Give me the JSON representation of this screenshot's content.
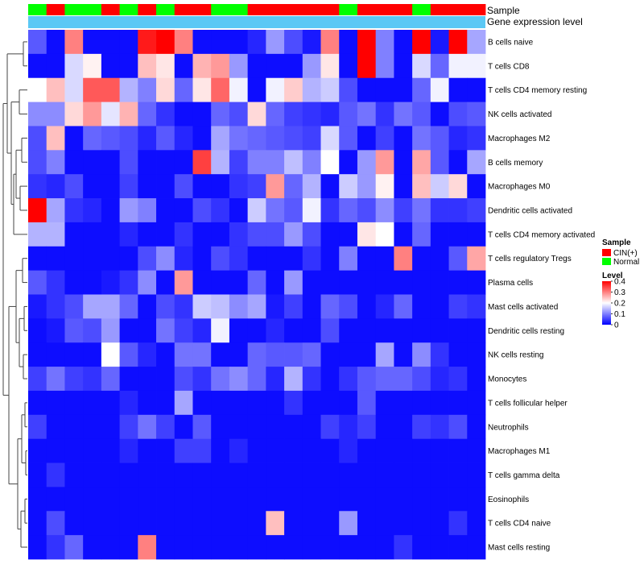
{
  "chart_data": {
    "type": "heatmap",
    "annotation_tracks": [
      {
        "name": "Sample",
        "label": "Sample"
      },
      {
        "name": "Gene expression level",
        "label": "Gene expression level"
      }
    ],
    "sample_groups": [
      "N",
      "C",
      "N",
      "N",
      "C",
      "N",
      "C",
      "N",
      "C",
      "C",
      "N",
      "N",
      "C",
      "C",
      "C",
      "C",
      "C",
      "N",
      "C",
      "C",
      "C",
      "N",
      "C",
      "C",
      "C"
    ],
    "gene_expression_color": "#5BC8F5",
    "rows": [
      "B cells naive",
      "T cells CD8",
      "T cells CD4 memory resting",
      "NK cells activated",
      "Macrophages M2",
      "B cells memory",
      "Macrophages M0",
      "Dendritic cells activated",
      "T cells CD4 memory activated",
      "T cells regulatory  Tregs",
      "Plasma cells",
      "Mast cells activated",
      "Dendritic cells resting",
      "NK cells resting",
      "Monocytes",
      "T cells follicular helper",
      "Neutrophils",
      "Macrophages M1",
      "T cells gamma delta",
      "Eosinophils",
      "T cells CD4 naive",
      "Mast cells resting"
    ],
    "values": [
      [
        0.07,
        0.01,
        0.3,
        0.01,
        0.01,
        0.01,
        0.38,
        0.4,
        0.3,
        0.01,
        0.01,
        0.01,
        0.03,
        0.12,
        0.06,
        0.02,
        0.3,
        0.01,
        0.4,
        0.1,
        0.01,
        0.4,
        0.02,
        0.4,
        0.13
      ],
      [
        0.01,
        0.01,
        0.17,
        0.21,
        0.01,
        0.01,
        0.25,
        0.22,
        0.01,
        0.26,
        0.28,
        0.12,
        0.01,
        0.01,
        0.01,
        0.12,
        0.22,
        0.01,
        0.4,
        0.1,
        0.01,
        0.17,
        0.08,
        0.19,
        0.19
      ],
      [
        0.2,
        0.25,
        0.17,
        0.33,
        0.33,
        0.14,
        0.1,
        0.23,
        0.08,
        0.22,
        0.32,
        0.19,
        0.01,
        0.19,
        0.24,
        0.14,
        0.16,
        0.06,
        0.01,
        0.01,
        0.01,
        0.08,
        0.19,
        0.01,
        0.01
      ],
      [
        0.11,
        0.11,
        0.23,
        0.28,
        0.18,
        0.26,
        0.08,
        0.04,
        0.01,
        0.01,
        0.08,
        0.06,
        0.23,
        0.08,
        0.05,
        0.04,
        0.03,
        0.07,
        0.09,
        0.04,
        0.09,
        0.07,
        0.01,
        0.06,
        0.07
      ],
      [
        0.06,
        0.25,
        0.01,
        0.08,
        0.07,
        0.06,
        0.03,
        0.07,
        0.03,
        0.01,
        0.13,
        0.09,
        0.08,
        0.07,
        0.06,
        0.05,
        0.17,
        0.07,
        0.01,
        0.05,
        0.01,
        0.09,
        0.07,
        0.03,
        0.04
      ],
      [
        0.06,
        0.1,
        0.01,
        0.01,
        0.01,
        0.06,
        0.01,
        0.01,
        0.01,
        0.35,
        0.14,
        0.05,
        0.1,
        0.1,
        0.15,
        0.1,
        0.2,
        0.01,
        0.12,
        0.28,
        0.01,
        0.27,
        0.07,
        0.01,
        0.13
      ],
      [
        0.04,
        0.03,
        0.06,
        0.01,
        0.01,
        0.05,
        0.01,
        0.01,
        0.06,
        0.01,
        0.01,
        0.04,
        0.05,
        0.28,
        0.08,
        0.14,
        0.01,
        0.16,
        0.12,
        0.21,
        0.01,
        0.25,
        0.16,
        0.23,
        0.01
      ],
      [
        0.4,
        0.13,
        0.04,
        0.03,
        0.01,
        0.12,
        0.1,
        0.01,
        0.01,
        0.06,
        0.04,
        0.01,
        0.16,
        0.09,
        0.07,
        0.19,
        0.04,
        0.08,
        0.06,
        0.11,
        0.05,
        0.09,
        0.04,
        0.04,
        0.05
      ],
      [
        0.14,
        0.14,
        0.01,
        0.01,
        0.01,
        0.03,
        0.01,
        0.01,
        0.04,
        0.01,
        0.01,
        0.04,
        0.06,
        0.06,
        0.12,
        0.06,
        0.01,
        0.01,
        0.22,
        0.2,
        0.01,
        0.08,
        0.01,
        0.01,
        0.01
      ],
      [
        0.01,
        0.01,
        0.01,
        0.01,
        0.01,
        0.01,
        0.06,
        0.11,
        0.03,
        0.01,
        0.06,
        0.04,
        0.01,
        0.01,
        0.01,
        0.04,
        0.01,
        0.1,
        0.01,
        0.01,
        0.3,
        0.01,
        0.01,
        0.07,
        0.27
      ],
      [
        0.07,
        0.04,
        0.01,
        0.01,
        0.02,
        0.04,
        0.11,
        0.01,
        0.28,
        0.01,
        0.01,
        0.01,
        0.08,
        0.01,
        0.12,
        0.01,
        0.01,
        0.01,
        0.01,
        0.01,
        0.01,
        0.01,
        0.01,
        0.01,
        0.01
      ],
      [
        0.02,
        0.04,
        0.06,
        0.13,
        0.13,
        0.08,
        0.01,
        0.06,
        0.04,
        0.16,
        0.15,
        0.11,
        0.13,
        0.02,
        0.05,
        0.01,
        0.08,
        0.06,
        0.01,
        0.03,
        0.08,
        0.01,
        0.01,
        0.05,
        0.04
      ],
      [
        0.01,
        0.02,
        0.07,
        0.06,
        0.12,
        0.01,
        0.01,
        0.09,
        0.05,
        0.03,
        0.19,
        0.01,
        0.01,
        0.03,
        0.01,
        0.01,
        0.06,
        0.01,
        0.01,
        0.01,
        0.01,
        0.01,
        0.01,
        0.01,
        0.01
      ],
      [
        0.01,
        0.01,
        0.01,
        0.01,
        0.2,
        0.07,
        0.03,
        0.01,
        0.09,
        0.09,
        0.01,
        0.01,
        0.08,
        0.07,
        0.07,
        0.08,
        0.01,
        0.01,
        0.01,
        0.13,
        0.01,
        0.11,
        0.04,
        0.01,
        0.01
      ],
      [
        0.05,
        0.09,
        0.05,
        0.04,
        0.08,
        0.01,
        0.01,
        0.01,
        0.06,
        0.04,
        0.09,
        0.11,
        0.08,
        0.03,
        0.14,
        0.04,
        0.01,
        0.04,
        0.07,
        0.08,
        0.08,
        0.06,
        0.03,
        0.04,
        0.01
      ],
      [
        0.01,
        0.01,
        0.01,
        0.01,
        0.01,
        0.03,
        0.01,
        0.01,
        0.13,
        0.01,
        0.01,
        0.01,
        0.01,
        0.01,
        0.04,
        0.01,
        0.01,
        0.01,
        0.07,
        0.01,
        0.01,
        0.01,
        0.01,
        0.01,
        0.01
      ],
      [
        0.05,
        0.01,
        0.01,
        0.01,
        0.01,
        0.05,
        0.09,
        0.05,
        0.01,
        0.07,
        0.01,
        0.01,
        0.01,
        0.01,
        0.01,
        0.01,
        0.05,
        0.03,
        0.05,
        0.01,
        0.01,
        0.05,
        0.04,
        0.06,
        0.01
      ],
      [
        0.01,
        0.01,
        0.01,
        0.01,
        0.01,
        0.03,
        0.01,
        0.01,
        0.05,
        0.05,
        0.01,
        0.03,
        0.01,
        0.01,
        0.01,
        0.01,
        0.01,
        0.03,
        0.01,
        0.01,
        0.01,
        0.01,
        0.01,
        0.01,
        0.01
      ],
      [
        0.01,
        0.04,
        0.01,
        0.01,
        0.01,
        0.01,
        0.01,
        0.01,
        0.01,
        0.01,
        0.01,
        0.01,
        0.01,
        0.01,
        0.01,
        0.01,
        0.01,
        0.01,
        0.01,
        0.01,
        0.01,
        0.01,
        0.01,
        0.01,
        0.01
      ],
      [
        0.01,
        0.01,
        0.01,
        0.01,
        0.01,
        0.01,
        0.01,
        0.01,
        0.01,
        0.01,
        0.01,
        0.01,
        0.01,
        0.01,
        0.01,
        0.01,
        0.01,
        0.01,
        0.01,
        0.01,
        0.01,
        0.01,
        0.01,
        0.01,
        0.01
      ],
      [
        0.01,
        0.06,
        0.01,
        0.01,
        0.01,
        0.01,
        0.01,
        0.01,
        0.01,
        0.01,
        0.01,
        0.01,
        0.01,
        0.25,
        0.01,
        0.01,
        0.01,
        0.12,
        0.01,
        0.01,
        0.01,
        0.01,
        0.01,
        0.04,
        0.01
      ],
      [
        0.01,
        0.04,
        0.08,
        0.01,
        0.01,
        0.01,
        0.3,
        0.01,
        0.01,
        0.01,
        0.01,
        0.01,
        0.01,
        0.01,
        0.01,
        0.01,
        0.01,
        0.01,
        0.01,
        0.01,
        0.04,
        0.01,
        0.01,
        0.01,
        0.01
      ]
    ],
    "value_range": [
      0,
      0.4
    ],
    "legend": {
      "sample_title": "Sample",
      "sample_entries": [
        {
          "label": "CIN(+)",
          "color": "#FF0000"
        },
        {
          "label": "Normal",
          "color": "#00FF00"
        }
      ],
      "level_title": "Level",
      "level_ticks": [
        "0.4",
        "0.3",
        "0.2",
        "0.1",
        "0"
      ],
      "level_tick_values": [
        0.4,
        0.3,
        0.2,
        0.1,
        0
      ],
      "colors": {
        "low": "#0000FF",
        "mid": "#FFFFFF",
        "high": "#FF0000"
      }
    }
  }
}
